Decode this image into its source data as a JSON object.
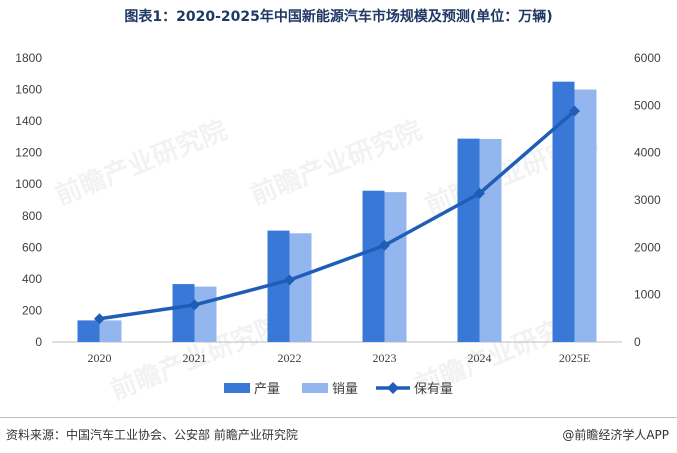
{
  "title": "图表1：2020-2025年中国新能源汽车市场规模及预测(单位：万辆)",
  "source": "资料来源：中国汽车工业协会、公安部 前瞻产业研究院",
  "brand": "@前瞻经济学人APP",
  "watermark": "前瞻产业研究院",
  "colors": {
    "production": "#3a78d8",
    "sales": "#94b6ee",
    "ownership": "#1e5eb7"
  },
  "chart_data": {
    "type": "bar",
    "categories": [
      "2020",
      "2021",
      "2022",
      "2023",
      "2024",
      "2025E"
    ],
    "series": [
      {
        "name": "产量",
        "type": "bar",
        "axis": "left",
        "values": [
          137,
          367,
          706,
          959,
          1289,
          1650
        ]
      },
      {
        "name": "销量",
        "type": "bar",
        "axis": "left",
        "values": [
          137,
          351,
          689,
          950,
          1287,
          1600
        ]
      },
      {
        "name": "保有量",
        "type": "line",
        "axis": "right",
        "values": [
          492,
          784,
          1310,
          2041,
          3140,
          4880
        ]
      }
    ],
    "y_left": {
      "min": 0,
      "max": 1800,
      "ticks": [
        0,
        200,
        400,
        600,
        800,
        1000,
        1200,
        1400,
        1600,
        1800
      ]
    },
    "y_right": {
      "min": 0,
      "max": 6000,
      "ticks": [
        0,
        1000,
        2000,
        3000,
        4000,
        5000,
        6000
      ]
    },
    "legend_position": "bottom",
    "grid": false
  }
}
